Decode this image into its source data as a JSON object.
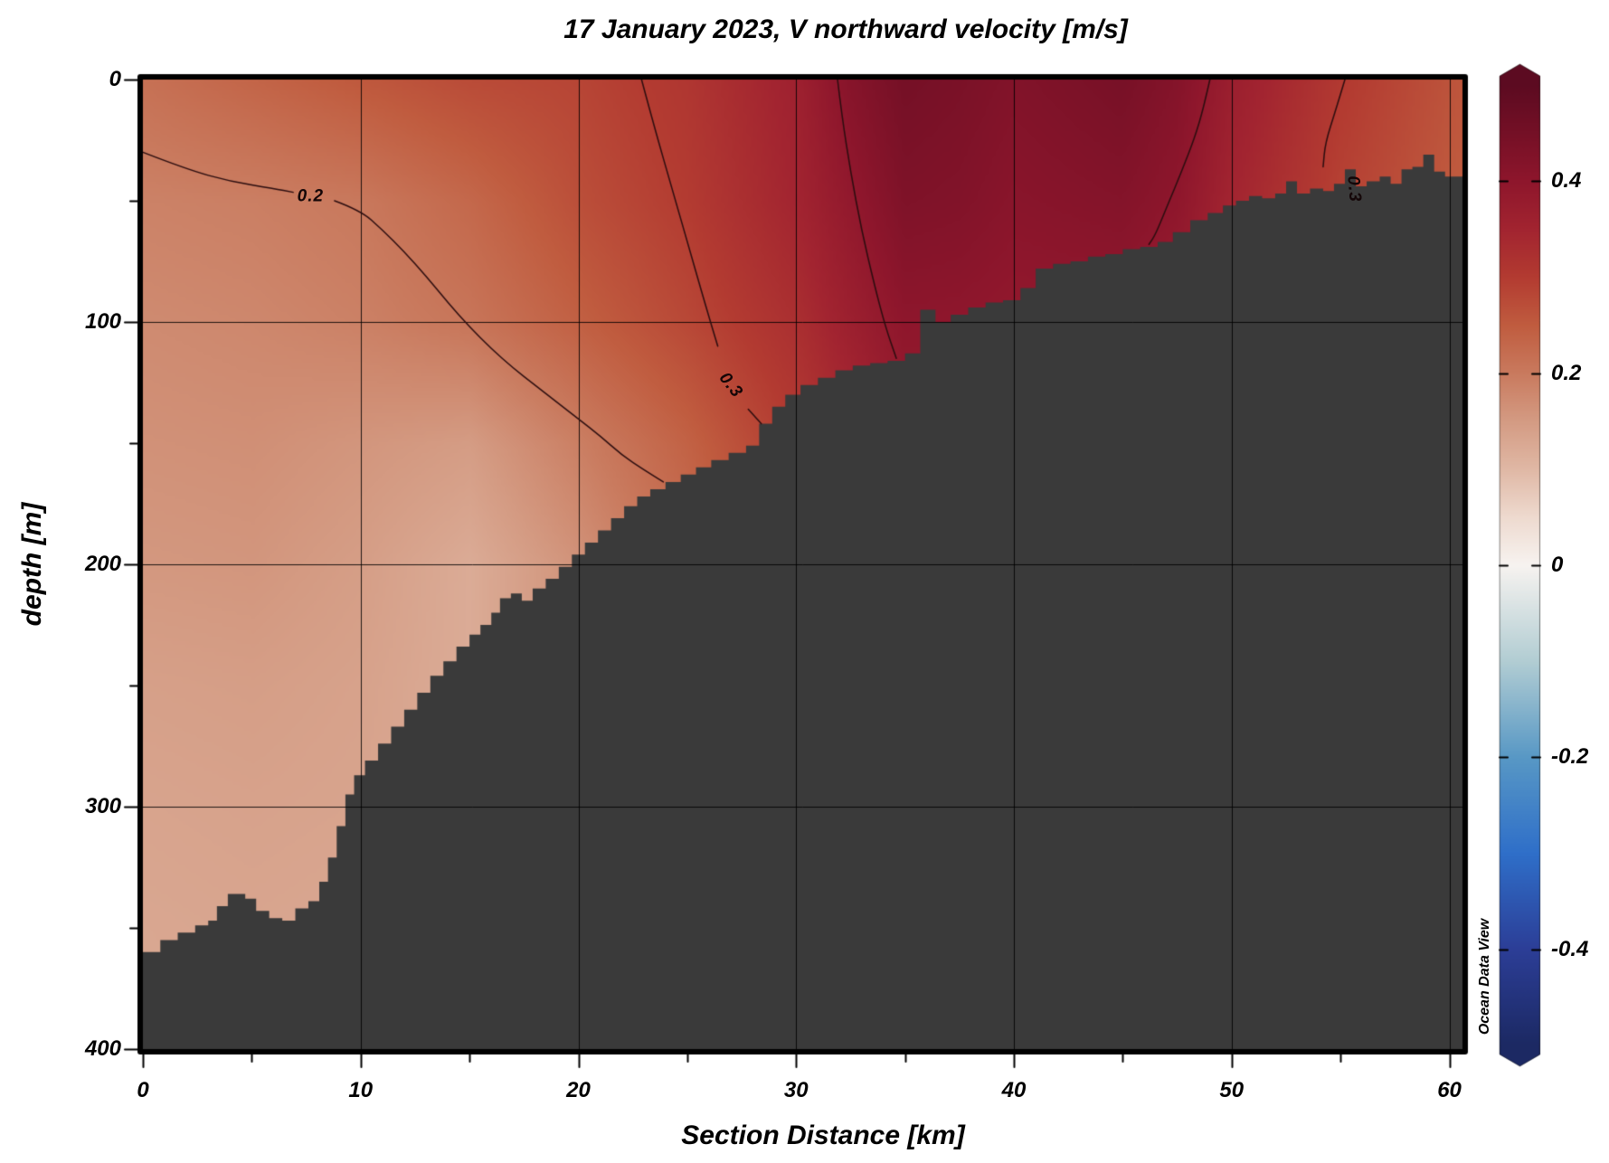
{
  "chart_data": {
    "type": "heatmap",
    "title": "17 January 2023, V northward velocity [m/s]",
    "xlabel": "Section Distance [km]",
    "ylabel": "depth [m]",
    "watermark": "Ocean Data View",
    "x_range": [
      0,
      60.6
    ],
    "depth_range": [
      0,
      400
    ],
    "x_ticks": {
      "major": [
        0,
        10,
        20,
        30,
        40,
        50,
        60
      ],
      "minor": [
        5,
        15,
        25,
        35,
        45,
        55
      ]
    },
    "depth_ticks": {
      "major": [
        0,
        100,
        200,
        300,
        400
      ],
      "minor": [
        50,
        150,
        250,
        350
      ]
    },
    "gridlines": {
      "x": [
        10,
        20,
        30,
        40,
        50,
        60
      ],
      "depth": [
        100,
        200,
        300
      ]
    },
    "grid": {
      "x_km": [
        0,
        5,
        10,
        15,
        20,
        25,
        30,
        32.5,
        35,
        37.5,
        40,
        42.5,
        45,
        47.5,
        50,
        55,
        60.6
      ],
      "depth_m": [
        0,
        50,
        100,
        150,
        200,
        250,
        300,
        350,
        400
      ],
      "velocity_ms": [
        [
          0.215,
          0.235,
          0.255,
          0.275,
          0.285,
          0.31,
          0.36,
          0.415,
          0.45,
          0.44,
          0.425,
          0.435,
          0.445,
          0.42,
          0.37,
          0.305,
          0.26
        ],
        [
          0.188,
          0.193,
          0.203,
          0.23,
          0.27,
          0.3,
          0.35,
          0.39,
          0.43,
          0.425,
          0.41,
          0.415,
          0.42,
          0.4,
          0.35,
          0.29,
          0.25
        ],
        [
          0.175,
          0.18,
          0.19,
          0.208,
          0.243,
          0.28,
          0.325,
          0.365,
          0.4,
          0.398,
          0.39,
          0.39,
          0.39,
          0.37,
          0.34,
          0.295,
          0.258
        ],
        [
          0.165,
          0.168,
          0.158,
          0.148,
          0.193,
          0.24,
          0.3,
          0.335,
          0.375,
          0.375,
          0.375,
          0.375,
          0.375,
          0.365,
          0.335,
          0.295,
          0.258
        ],
        [
          0.155,
          0.158,
          0.145,
          0.122,
          0.163,
          0.22,
          0.28,
          0.315,
          0.35,
          0.35,
          0.35,
          0.35,
          0.35,
          0.35,
          0.33,
          0.295,
          0.258
        ],
        [
          0.142,
          0.145,
          0.138,
          0.122,
          0.168,
          0.22,
          0.28,
          0.315,
          0.35,
          0.35,
          0.35,
          0.35,
          0.35,
          0.35,
          0.33,
          0.295,
          0.258
        ],
        [
          0.135,
          0.138,
          0.135,
          0.125,
          0.168,
          0.22,
          0.28,
          0.315,
          0.35,
          0.35,
          0.35,
          0.35,
          0.35,
          0.35,
          0.33,
          0.295,
          0.258
        ],
        [
          0.13,
          0.133,
          0.13,
          0.125,
          0.168,
          0.22,
          0.28,
          0.315,
          0.35,
          0.35,
          0.35,
          0.35,
          0.35,
          0.35,
          0.33,
          0.295,
          0.258
        ],
        [
          0.128,
          0.13,
          0.128,
          0.125,
          0.168,
          0.22,
          0.28,
          0.315,
          0.35,
          0.35,
          0.35,
          0.35,
          0.35,
          0.35,
          0.33,
          0.295,
          0.258
        ]
      ]
    },
    "contours": [
      {
        "level": 0.2,
        "segments": [
          [
            [
              0,
              30
            ],
            [
              2,
              37
            ],
            [
              4,
              42
            ],
            [
              6,
              45
            ],
            [
              6.9,
              46.5
            ]
          ],
          [
            [
              8.8,
              50
            ],
            [
              10,
              54
            ],
            [
              11,
              62
            ],
            [
              12,
              71
            ],
            [
              13,
              81
            ],
            [
              14,
              92
            ],
            [
              15,
              102
            ],
            [
              16,
              111
            ],
            [
              17,
              119
            ],
            [
              18,
              126
            ],
            [
              19,
              133
            ],
            [
              20,
              140
            ],
            [
              21,
              147
            ],
            [
              22,
              155
            ],
            [
              23,
              161
            ],
            [
              23.9,
              166
            ]
          ]
        ],
        "label": {
          "text": "0.2",
          "km": 7.7,
          "depth": 48,
          "angle": 0
        }
      },
      {
        "level": 0.3,
        "segments": [
          [
            [
              22.9,
              0
            ],
            [
              23.5,
              20
            ],
            [
              24.3,
              45
            ],
            [
              25.1,
              70
            ],
            [
              25.8,
              92
            ],
            [
              26.4,
              110
            ]
          ],
          [
            [
              27.8,
              136
            ],
            [
              28.4,
              142
            ]
          ]
        ],
        "label": {
          "text": "0.3",
          "km": 27.0,
          "depth": 126,
          "angle": 52
        }
      },
      {
        "level": 0.4,
        "segments": [
          [
            [
              31.9,
              0
            ],
            [
              32.1,
              15
            ],
            [
              32.5,
              38
            ],
            [
              33.0,
              62
            ],
            [
              33.6,
              85
            ],
            [
              34.1,
              102
            ],
            [
              34.6,
              115
            ]
          ]
        ]
      },
      {
        "level": 0.4,
        "segments": [
          [
            [
              49.0,
              0
            ],
            [
              48.7,
              12
            ],
            [
              48.3,
              24
            ],
            [
              47.7,
              38
            ],
            [
              47.0,
              53
            ],
            [
              46.5,
              64
            ],
            [
              46.2,
              68
            ]
          ]
        ]
      },
      {
        "level": 0.3,
        "segments": [
          [
            [
              55.2,
              0
            ],
            [
              54.8,
              12
            ],
            [
              54.3,
              26
            ],
            [
              54.2,
              36
            ]
          ]
        ],
        "label": {
          "text": "0.3",
          "km": 55.6,
          "depth": 45,
          "angle": 85
        }
      }
    ],
    "bathymetry_km_depth": [
      [
        0,
        360
      ],
      [
        0.8,
        355
      ],
      [
        1.6,
        352
      ],
      [
        2.4,
        349
      ],
      [
        3.0,
        347
      ],
      [
        3.4,
        341
      ],
      [
        3.9,
        336
      ],
      [
        4.7,
        338
      ],
      [
        5.2,
        343
      ],
      [
        5.8,
        346
      ],
      [
        6.4,
        347
      ],
      [
        7.0,
        342
      ],
      [
        7.6,
        339
      ],
      [
        8.1,
        331
      ],
      [
        8.5,
        321
      ],
      [
        8.9,
        308
      ],
      [
        9.3,
        295
      ],
      [
        9.7,
        287
      ],
      [
        10.2,
        281
      ],
      [
        10.8,
        274
      ],
      [
        11.4,
        267
      ],
      [
        12.0,
        260
      ],
      [
        12.6,
        253
      ],
      [
        13.2,
        246
      ],
      [
        13.8,
        240
      ],
      [
        14.4,
        234
      ],
      [
        15.0,
        229
      ],
      [
        15.5,
        225
      ],
      [
        16.0,
        220
      ],
      [
        16.4,
        214
      ],
      [
        16.9,
        212
      ],
      [
        17.4,
        215
      ],
      [
        17.9,
        210
      ],
      [
        18.5,
        206
      ],
      [
        19.1,
        201
      ],
      [
        19.7,
        196
      ],
      [
        20.3,
        191
      ],
      [
        20.9,
        186
      ],
      [
        21.5,
        181
      ],
      [
        22.1,
        176
      ],
      [
        22.7,
        172
      ],
      [
        23.3,
        169
      ],
      [
        24.0,
        166
      ],
      [
        24.7,
        163
      ],
      [
        25.4,
        160
      ],
      [
        26.1,
        157
      ],
      [
        26.9,
        154
      ],
      [
        27.7,
        151
      ],
      [
        28.3,
        142
      ],
      [
        28.9,
        135
      ],
      [
        29.5,
        130
      ],
      [
        30.2,
        126
      ],
      [
        31.0,
        123
      ],
      [
        31.8,
        120
      ],
      [
        32.6,
        118
      ],
      [
        33.4,
        117
      ],
      [
        34.2,
        116
      ],
      [
        35.0,
        113
      ],
      [
        35.7,
        95
      ],
      [
        36.4,
        100
      ],
      [
        37.1,
        97
      ],
      [
        37.9,
        94
      ],
      [
        38.7,
        92
      ],
      [
        39.5,
        91
      ],
      [
        40.3,
        86
      ],
      [
        41.0,
        78
      ],
      [
        41.8,
        76
      ],
      [
        42.6,
        75
      ],
      [
        43.4,
        73
      ],
      [
        44.2,
        72
      ],
      [
        45.0,
        70
      ],
      [
        45.8,
        69
      ],
      [
        46.6,
        67
      ],
      [
        47.3,
        63
      ],
      [
        48.1,
        58
      ],
      [
        48.9,
        55
      ],
      [
        49.6,
        52
      ],
      [
        50.2,
        50
      ],
      [
        50.8,
        48
      ],
      [
        51.4,
        49
      ],
      [
        52.0,
        47
      ],
      [
        52.5,
        42
      ],
      [
        53.0,
        47
      ],
      [
        53.6,
        45
      ],
      [
        54.2,
        46
      ],
      [
        54.7,
        43
      ],
      [
        55.2,
        37
      ],
      [
        55.7,
        44
      ],
      [
        56.2,
        42
      ],
      [
        56.8,
        40
      ],
      [
        57.3,
        43
      ],
      [
        57.8,
        37
      ],
      [
        58.3,
        36
      ],
      [
        58.8,
        31
      ],
      [
        59.3,
        38
      ],
      [
        59.8,
        40
      ],
      [
        60.6,
        41
      ]
    ],
    "colormap": [
      [
        -0.5,
        "#1c2963"
      ],
      [
        -0.4,
        "#2c3e97"
      ],
      [
        -0.3,
        "#2f6fc9"
      ],
      [
        -0.2,
        "#5898c5"
      ],
      [
        -0.1,
        "#b2cdd3"
      ],
      [
        0,
        "#f7f3f0"
      ],
      [
        0.05,
        "#eedacf"
      ],
      [
        0.1,
        "#e0b8a5"
      ],
      [
        0.15,
        "#d49b83"
      ],
      [
        0.2,
        "#c97a5e"
      ],
      [
        0.25,
        "#c05c3f"
      ],
      [
        0.3,
        "#b33b31"
      ],
      [
        0.35,
        "#a22430"
      ],
      [
        0.4,
        "#8e162c"
      ],
      [
        0.45,
        "#751026"
      ],
      [
        0.5,
        "#5c0b21"
      ]
    ],
    "colorbar": {
      "min": -0.5,
      "max": 0.5,
      "ticks": [
        0.4,
        0.2,
        0,
        -0.2,
        -0.4
      ],
      "labels": [
        "0.4",
        "0.2",
        "0",
        "-0.2",
        "-0.4"
      ]
    },
    "seafloor_color": "#3a3a3a",
    "grid_color": "#000000",
    "contour_color": "#2b0d0f",
    "frame_color": "#000000",
    "background": "#ffffff"
  }
}
